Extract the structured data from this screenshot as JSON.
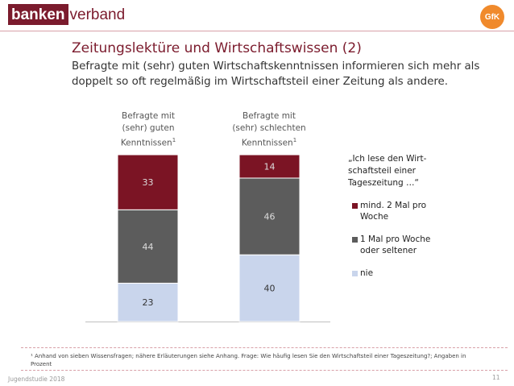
{
  "header": {
    "logo_part1": "banken",
    "logo_part2": "verband",
    "gfk_logo": "GfK"
  },
  "title": "Zeitungslektüre und Wirtschaftswissen (2)",
  "subtitle": "Befragte mit (sehr) guten Wirtschaftskenntnissen informieren sich mehr als doppelt so oft regelmäßig im Wirtschaftsteil einer Zeitung als andere.",
  "chart_data": {
    "type": "bar",
    "stacked": true,
    "categories": [
      "Befragte mit (sehr) guten Kenntnissen¹",
      "Befragte mit (sehr) schlechten Kenntnissen¹"
    ],
    "category_lines": [
      [
        "Befragte mit",
        "(sehr) guten",
        "Kenntnissen"
      ],
      [
        "Befragte mit",
        "(sehr) schlechten",
        "Kenntnissen"
      ]
    ],
    "footnote_marker": "1",
    "series": [
      {
        "name": "nie",
        "values": [
          23,
          40
        ],
        "color": "#c9d5ec",
        "label_color": "#333333"
      },
      {
        "name": "1 Mal pro Woche oder seltener",
        "values": [
          44,
          46
        ],
        "color": "#5c5c5c",
        "label_color": "#dddddd"
      },
      {
        "name": "mind. 2 Mal pro Woche",
        "values": [
          33,
          14
        ],
        "color": "#7b1424",
        "label_color": "#dddddd"
      }
    ],
    "ylim": [
      0,
      100
    ],
    "title": "",
    "xlabel": "",
    "ylabel": ""
  },
  "legend": {
    "quote": "„Ich lese den Wirt-schaftsteil einer Tageszeitung …“",
    "items": [
      {
        "label": "mind. 2 Mal pro Woche",
        "color": "#7b1424"
      },
      {
        "label": "1 Mal pro Woche oder seltener",
        "color": "#5c5c5c"
      },
      {
        "label": "nie",
        "color": "#c9d5ec"
      }
    ]
  },
  "footnote": "¹ Anhand von sieben Wissensfragen; nähere Erläuterungen siehe Anhang. Frage: Wie häufig lesen Sie den Wirtschaftsteil einer Tageszeitung?; Angaben in Prozent",
  "footer": {
    "left": "Jugendstudie 2018",
    "page": "11"
  }
}
